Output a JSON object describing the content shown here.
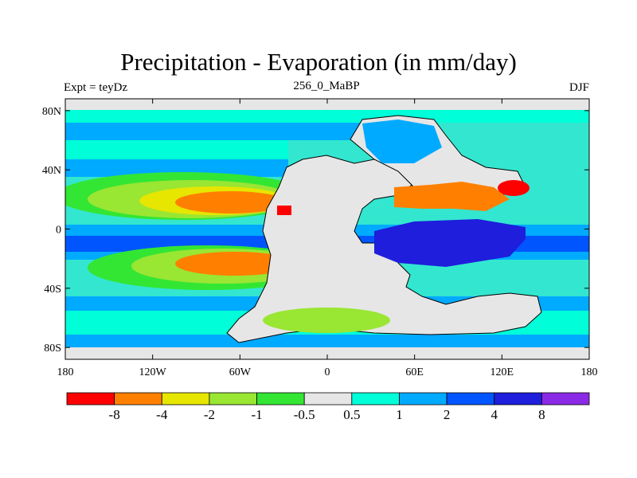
{
  "title": "Precipitation - Evaporation (in mm/day)",
  "left_label": "Expt = teyDz",
  "center_label": "256_0_MaBP",
  "right_label": "DJF",
  "lat_ticks": [
    {
      "lat": 80,
      "label": "80N"
    },
    {
      "lat": 40,
      "label": "40N"
    },
    {
      "lat": 0,
      "label": "0"
    },
    {
      "lat": -40,
      "label": "40S"
    },
    {
      "lat": -80,
      "label": "80S"
    }
  ],
  "lon_ticks": [
    {
      "lon": -180,
      "label": "180"
    },
    {
      "lon": -120,
      "label": "120W"
    },
    {
      "lon": -60,
      "label": "60W"
    },
    {
      "lon": 0,
      "label": "0"
    },
    {
      "lon": 60,
      "label": "60E"
    },
    {
      "lon": 120,
      "label": "120E"
    },
    {
      "lon": 180,
      "label": "180"
    }
  ],
  "colorbar": {
    "colors": [
      "#ff0000",
      "#ff8000",
      "#e6e600",
      "#99e633",
      "#33e633",
      "#e6e6e6",
      "#00ffd9",
      "#00aaff",
      "#0055ff",
      "#1e1edc",
      "#8b2ae6"
    ],
    "labels": [
      "-8",
      "-4",
      "-2",
      "-1",
      "-0.5",
      "0.5",
      "1",
      "2",
      "4",
      "8"
    ]
  },
  "colors": {
    "ocean_base": "#33cccc",
    "land": "#e6e6e6",
    "coastline": "#000000"
  }
}
